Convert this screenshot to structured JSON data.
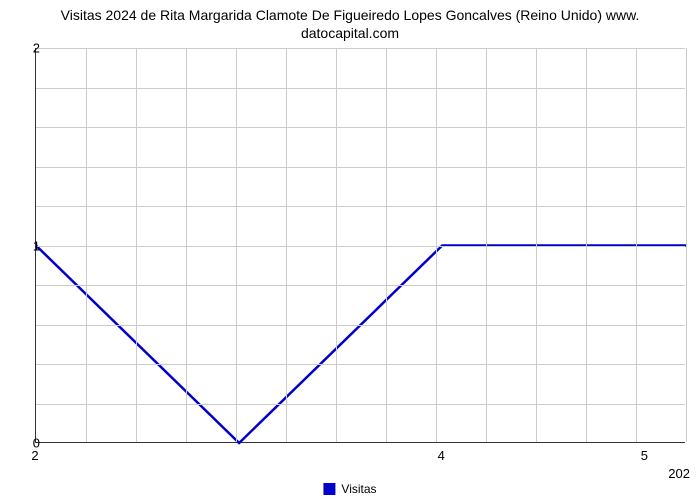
{
  "chart": {
    "type": "line",
    "title_line1": "Visitas 2024 de Rita Margarida Clamote De Figueiredo Lopes Goncalves (Reino Unido) www.",
    "title_line2": "datocapital.com",
    "title_fontsize": 14,
    "title_color": "#000000",
    "background_color": "#ffffff",
    "grid_color": "#cccccc",
    "axis_color": "#333333",
    "series": {
      "name": "Visitas",
      "color": "#0000cc",
      "line_width": 2.5,
      "x": [
        2.0,
        3.0,
        4.0,
        5.2
      ],
      "y": [
        1.0,
        0.0,
        1.0,
        1.0
      ]
    },
    "xlim": [
      2.0,
      5.2
    ],
    "ylim": [
      0,
      2
    ],
    "yticks": [
      0,
      1,
      2
    ],
    "xticks_major": [
      2,
      4,
      5
    ],
    "x_secondary_label": "202",
    "hgrid_count": 10,
    "vgrid_count": 13,
    "tick_fontsize": 13,
    "legend_label": "Visitas",
    "legend_color": "#0000cc"
  }
}
